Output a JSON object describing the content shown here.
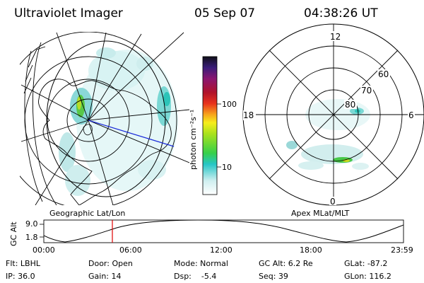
{
  "header": {
    "title": "Ultraviolet Imager",
    "date": "05 Sep 07",
    "time": "04:38:26 UT"
  },
  "colorbar": {
    "unit_label": "photon cm⁻²s⁻¹",
    "ticks": [
      "100",
      "10"
    ]
  },
  "maps": {
    "left_caption": "Geographic Lat/Lon",
    "right_caption": "Apex MLat/MLT",
    "polar_labels": {
      "top": "12",
      "left": "18",
      "right": "6",
      "bottom": "0",
      "lat60": "60",
      "lat70": "70",
      "lat80": "80"
    }
  },
  "timeline": {
    "ylabel": "GC Alt",
    "ytick_top": "9.0",
    "ytick_bottom": "1.8",
    "xticks": [
      "00:00",
      "06:00",
      "12:00",
      "18:00",
      "23:59"
    ],
    "marker_color": "#e00000"
  },
  "status": {
    "row1": [
      "Flt: LBHL",
      "Door: Open",
      "Mode: Normal",
      "GC Alt: 6.2 Re",
      "GLat: -87.2"
    ],
    "row2": [
      "IP: 36.0",
      "Gain: 14",
      "Dsp:    -5.4",
      "Seq: 39",
      "GLon: 116.2"
    ]
  }
}
